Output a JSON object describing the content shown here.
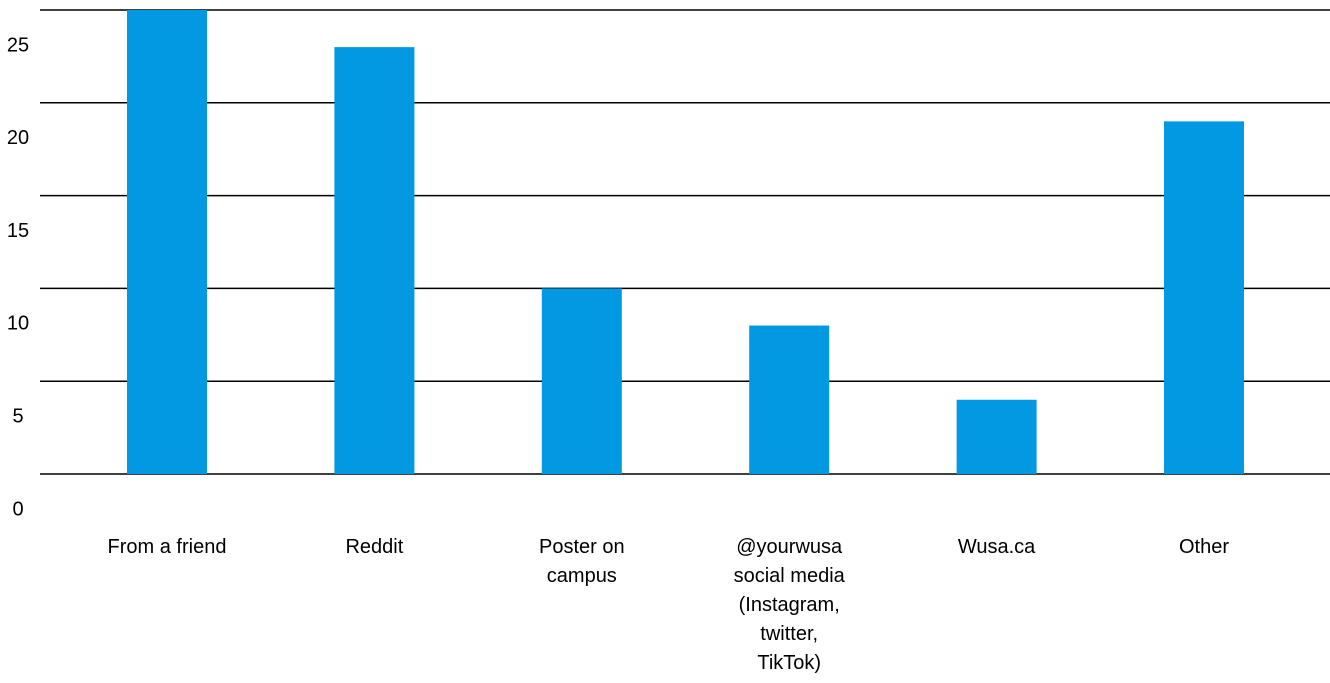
{
  "chart_data": {
    "type": "bar",
    "categories": [
      [
        "From a friend"
      ],
      [
        "Reddit"
      ],
      [
        "Poster on",
        "campus"
      ],
      [
        "@yourwusa",
        "social media",
        "(Instagram,",
        "twitter,",
        "TikTok)"
      ],
      [
        "Wusa.ca"
      ],
      [
        "Other"
      ]
    ],
    "values": [
      25,
      23,
      10,
      8,
      4,
      19
    ],
    "yticks": [
      0,
      5,
      10,
      15,
      20,
      25
    ],
    "ylim": [
      0,
      25
    ],
    "grid": true,
    "legend": "none",
    "colors": {
      "bar": "#0299E2",
      "grid": "#000000",
      "text": "#000000"
    }
  }
}
